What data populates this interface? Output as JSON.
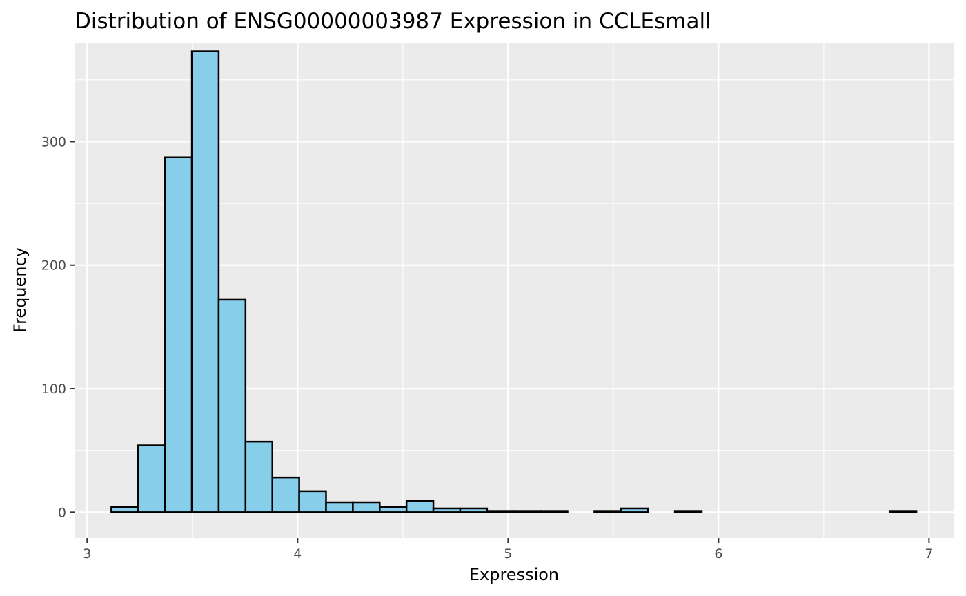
{
  "chart_data": {
    "type": "bar",
    "title": "Distribution of ENSG00000003987 Expression in CCLEsmall",
    "xlabel": "Expression",
    "ylabel": "Frequency",
    "xlim": [
      2.94,
      7.12
    ],
    "ylim": [
      -21,
      380
    ],
    "x_ticks": [
      3,
      4,
      5,
      6,
      7
    ],
    "y_ticks": [
      0,
      100,
      200,
      300
    ],
    "x_tick_labels": [
      "3",
      "4",
      "5",
      "6",
      "7"
    ],
    "y_tick_labels": [
      "0",
      "100",
      "200",
      "300"
    ],
    "grid": true,
    "panel_color": "#ebebeb",
    "bar_fill": "#87ceeb",
    "bar_outline": "#000000",
    "bin_width": 0.1275,
    "bins": [
      {
        "x0": 3.115,
        "x1": 3.2425,
        "count": 4
      },
      {
        "x0": 3.2425,
        "x1": 3.37,
        "count": 54
      },
      {
        "x0": 3.37,
        "x1": 3.4975,
        "count": 287
      },
      {
        "x0": 3.4975,
        "x1": 3.625,
        "count": 373
      },
      {
        "x0": 3.625,
        "x1": 3.7525,
        "count": 172
      },
      {
        "x0": 3.7525,
        "x1": 3.88,
        "count": 57
      },
      {
        "x0": 3.88,
        "x1": 4.0075,
        "count": 28
      },
      {
        "x0": 4.0075,
        "x1": 4.135,
        "count": 17
      },
      {
        "x0": 4.135,
        "x1": 4.2625,
        "count": 8
      },
      {
        "x0": 4.2625,
        "x1": 4.39,
        "count": 8
      },
      {
        "x0": 4.39,
        "x1": 4.5175,
        "count": 4
      },
      {
        "x0": 4.5175,
        "x1": 4.645,
        "count": 9
      },
      {
        "x0": 4.645,
        "x1": 4.7725,
        "count": 3
      },
      {
        "x0": 4.7725,
        "x1": 4.9,
        "count": 3
      },
      {
        "x0": 4.9,
        "x1": 5.0275,
        "count": 1
      },
      {
        "x0": 5.0275,
        "x1": 5.155,
        "count": 1
      },
      {
        "x0": 5.155,
        "x1": 5.2825,
        "count": 1
      },
      {
        "x0": 5.2825,
        "x1": 5.41,
        "count": 0
      },
      {
        "x0": 5.41,
        "x1": 5.5375,
        "count": 1
      },
      {
        "x0": 5.5375,
        "x1": 5.665,
        "count": 3
      },
      {
        "x0": 5.665,
        "x1": 5.7925,
        "count": 0
      },
      {
        "x0": 5.7925,
        "x1": 5.92,
        "count": 1
      },
      {
        "x0": 5.92,
        "x1": 6.0475,
        "count": 0
      },
      {
        "x0": 6.0475,
        "x1": 6.175,
        "count": 0
      },
      {
        "x0": 6.175,
        "x1": 6.3025,
        "count": 0
      },
      {
        "x0": 6.3025,
        "x1": 6.43,
        "count": 0
      },
      {
        "x0": 6.43,
        "x1": 6.5575,
        "count": 0
      },
      {
        "x0": 6.5575,
        "x1": 6.685,
        "count": 0
      },
      {
        "x0": 6.685,
        "x1": 6.8125,
        "count": 0
      },
      {
        "x0": 6.8125,
        "x1": 6.94,
        "count": 1
      }
    ]
  }
}
